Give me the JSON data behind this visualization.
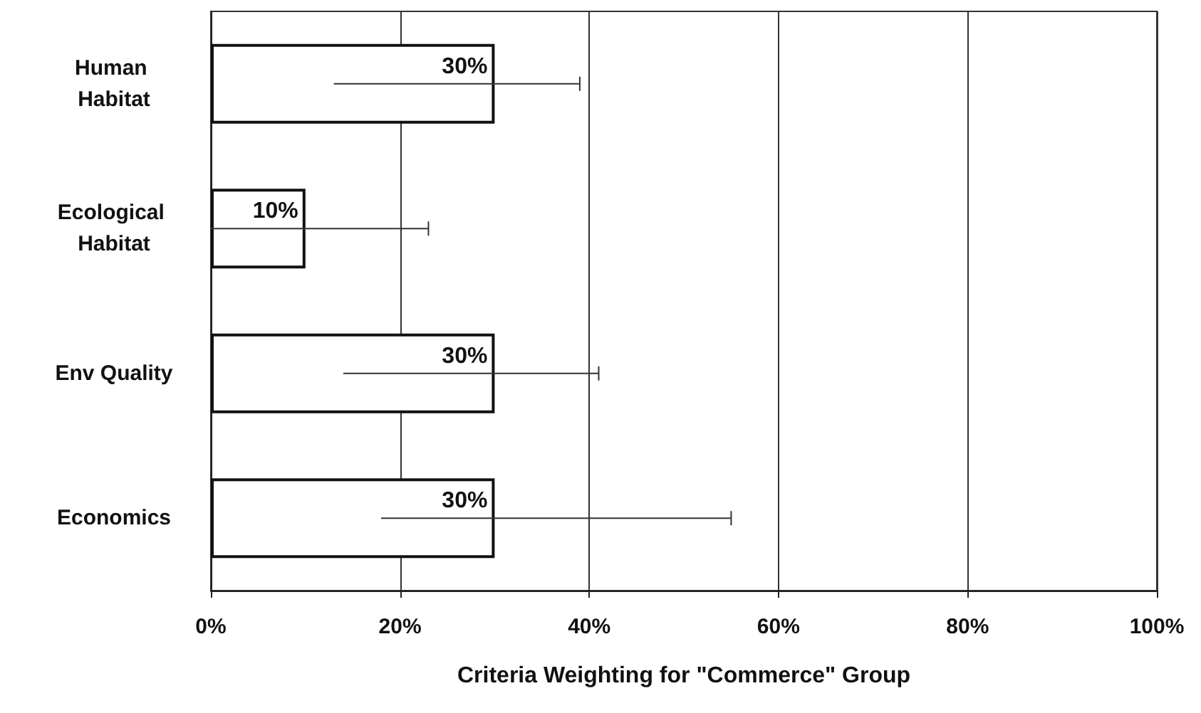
{
  "chart_data": {
    "type": "bar",
    "orientation": "horizontal",
    "xlabel": "Criteria Weighting for \"Commerce\" Group",
    "categories": [
      "Human Habitat",
      "Ecological Habitat",
      "Env Quality",
      "Economics"
    ],
    "values": [
      30,
      10,
      30,
      30
    ],
    "color": "#ffffff",
    "errors": [
      [
        13,
        39
      ],
      [
        0,
        23
      ],
      [
        14,
        41
      ],
      [
        18,
        55
      ]
    ],
    "value_labels": [
      "30%",
      "10%",
      "30%",
      "30%"
    ],
    "xlim": [
      0,
      100
    ],
    "xticks": [
      {
        "value": 0,
        "label": "0%"
      },
      {
        "value": 20,
        "label": "20%"
      },
      {
        "value": 40,
        "label": "40%"
      },
      {
        "value": 60,
        "label": "60%"
      },
      {
        "value": 80,
        "label": "80%"
      },
      {
        "value": 100,
        "label": "100%"
      }
    ],
    "grid": "x"
  }
}
